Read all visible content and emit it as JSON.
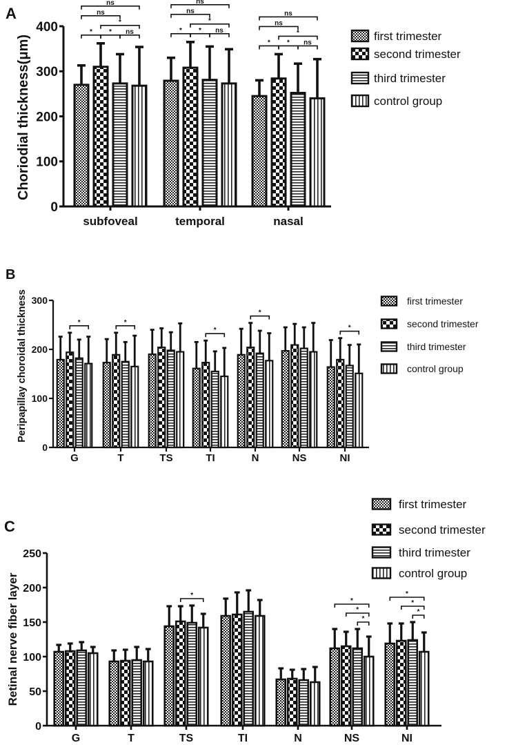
{
  "chart_data": [
    {
      "type": "bar",
      "panel_label": "A",
      "ylabel": "Choriodial thickness(μm)",
      "xlabel": "",
      "ylim": [
        0,
        400
      ],
      "yticks": [
        0,
        100,
        200,
        300,
        400
      ],
      "categories": [
        "subfoveal",
        "temporal",
        "nasal"
      ],
      "legend_position": "top-right",
      "series": [
        {
          "name": "first trimester",
          "pattern": "fine-checker",
          "values": [
            270,
            279,
            245
          ],
          "error_upper": [
            313,
            330,
            280
          ]
        },
        {
          "name": "second trimester",
          "pattern": "coarse-checker",
          "values": [
            310,
            308,
            284
          ],
          "error_upper": [
            362,
            365,
            338
          ]
        },
        {
          "name": "third trimester",
          "pattern": "horizontal-lines",
          "values": [
            273,
            281,
            252
          ],
          "error_upper": [
            338,
            355,
            317
          ]
        },
        {
          "name": "control group",
          "pattern": "vertical-lines",
          "values": [
            268,
            273,
            240
          ],
          "error_upper": [
            354,
            349,
            327
          ]
        }
      ],
      "significance": [
        [
          {
            "from": 0,
            "to": 1,
            "label": "*"
          },
          {
            "from": 1,
            "to": 2,
            "label": "*"
          },
          {
            "from": 2,
            "to": 3,
            "label": "ns"
          },
          {
            "from": 1,
            "to": 3,
            "label": "*"
          },
          {
            "from": 0,
            "to": 2,
            "label": "ns"
          },
          {
            "from": 0,
            "to": 3,
            "label": "ns"
          }
        ],
        [
          {
            "from": 0,
            "to": 1,
            "label": "*"
          },
          {
            "from": 1,
            "to": 2,
            "label": "*"
          },
          {
            "from": 2,
            "to": 3,
            "label": "ns"
          },
          {
            "from": 1,
            "to": 3,
            "label": "*"
          },
          {
            "from": 0,
            "to": 2,
            "label": "ns"
          },
          {
            "from": 0,
            "to": 3,
            "label": "ns"
          }
        ],
        [
          {
            "from": 0,
            "to": 1,
            "label": "*"
          },
          {
            "from": 1,
            "to": 2,
            "label": "*"
          },
          {
            "from": 2,
            "to": 3,
            "label": "ns"
          },
          {
            "from": 1,
            "to": 3,
            "label": "*"
          },
          {
            "from": 0,
            "to": 2,
            "label": "ns"
          },
          {
            "from": 0,
            "to": 3,
            "label": "ns"
          }
        ]
      ]
    },
    {
      "type": "bar",
      "panel_label": "B",
      "ylabel": "Peripapillay choroidal thickness",
      "xlabel": "",
      "ylim": [
        0,
        300
      ],
      "yticks": [
        0,
        100,
        200,
        300
      ],
      "categories": [
        "G",
        "T",
        "TS",
        "TI",
        "N",
        "NS",
        "NI"
      ],
      "legend_position": "right",
      "series": [
        {
          "name": "first trimester",
          "pattern": "fine-checker",
          "values": [
            179,
            173,
            190,
            161,
            189,
            197,
            164
          ],
          "error_upper": [
            226,
            221,
            240,
            215,
            242,
            245,
            219
          ]
        },
        {
          "name": "second trimester",
          "pattern": "coarse-checker",
          "values": [
            194,
            189,
            204,
            173,
            204,
            209,
            179
          ],
          "error_upper": [
            234,
            234,
            243,
            218,
            254,
            252,
            223
          ]
        },
        {
          "name": "third trimester",
          "pattern": "horizontal-lines",
          "values": [
            182,
            175,
            198,
            155,
            192,
            202,
            167
          ],
          "error_upper": [
            220,
            215,
            235,
            196,
            238,
            245,
            209
          ]
        },
        {
          "name": "control group",
          "pattern": "vertical-lines",
          "values": [
            171,
            165,
            195,
            145,
            177,
            195,
            151
          ],
          "error_upper": [
            226,
            228,
            253,
            203,
            233,
            254,
            210
          ]
        }
      ],
      "significance": [
        [
          {
            "from": 1,
            "to": 3,
            "label": "*"
          }
        ],
        [
          {
            "from": 1,
            "to": 3,
            "label": "*"
          }
        ],
        [],
        [
          {
            "from": 1,
            "to": 3,
            "label": "*"
          }
        ],
        [
          {
            "from": 1,
            "to": 3,
            "label": "*"
          }
        ],
        [],
        [
          {
            "from": 1,
            "to": 3,
            "label": "*"
          }
        ]
      ]
    },
    {
      "type": "bar",
      "panel_label": "C",
      "ylabel": "Retinal nerve fiber layer",
      "xlabel": "",
      "ylim": [
        0,
        250
      ],
      "yticks": [
        0,
        50,
        100,
        150,
        200,
        250
      ],
      "categories": [
        "G",
        "T",
        "TS",
        "TI",
        "N",
        "NS",
        "NI"
      ],
      "legend_position": "top-right",
      "series": [
        {
          "name": "first trimester",
          "pattern": "fine-checker",
          "values": [
            107,
            93,
            144,
            159,
            67,
            112,
            119
          ],
          "error_upper": [
            117,
            109,
            173,
            184,
            83,
            140,
            148
          ]
        },
        {
          "name": "second trimester",
          "pattern": "coarse-checker",
          "values": [
            108,
            94,
            151,
            161,
            68,
            115,
            123
          ],
          "error_upper": [
            119,
            110,
            173,
            193,
            81,
            136,
            148
          ]
        },
        {
          "name": "third trimester",
          "pattern": "horizontal-lines",
          "values": [
            109,
            95,
            149,
            165,
            66,
            112,
            124
          ],
          "error_upper": [
            121,
            114,
            174,
            196,
            82,
            140,
            150
          ]
        },
        {
          "name": "control group",
          "pattern": "vertical-lines",
          "values": [
            105,
            93,
            142,
            159,
            63,
            100,
            107
          ],
          "error_upper": [
            114,
            111,
            162,
            182,
            85,
            129,
            135
          ]
        }
      ],
      "significance": [
        [],
        [],
        [
          {
            "from": 1,
            "to": 3,
            "label": "*"
          }
        ],
        [],
        [],
        [
          {
            "from": 2,
            "to": 3,
            "label": "*"
          },
          {
            "from": 1,
            "to": 3,
            "label": "*"
          },
          {
            "from": 0,
            "to": 3,
            "label": "*"
          }
        ],
        [
          {
            "from": 2,
            "to": 3,
            "label": "*"
          },
          {
            "from": 1,
            "to": 3,
            "label": "*"
          },
          {
            "from": 0,
            "to": 3,
            "label": "*"
          }
        ]
      ]
    }
  ]
}
